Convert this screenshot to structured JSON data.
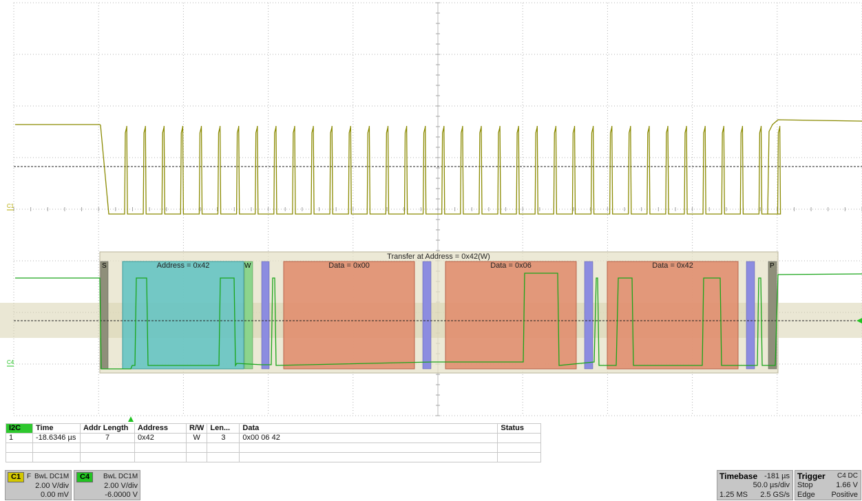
{
  "channels": {
    "c1_marker": "C1",
    "c4_marker": "C4"
  },
  "decode": {
    "transfer_label": "Transfer at Address = 0x42(W)",
    "start": "S",
    "address_label": "Address = 0x42",
    "rw": "W",
    "data_labels": [
      "Data = 0x00",
      "Data = 0x06",
      "Data = 0x42"
    ],
    "stop": "P"
  },
  "table": {
    "protocol": "I2C",
    "headers": [
      "Time",
      "Addr Length",
      "Address",
      "R/W",
      "Len...",
      "Data",
      "Status"
    ],
    "rows": [
      {
        "index": "1",
        "time": "-18.6346 µs",
        "addr_length": "7",
        "address": "0x42",
        "rw": "W",
        "len": "3",
        "data": "0x00 06 42",
        "status": ""
      }
    ]
  },
  "c1": {
    "label": "C1",
    "flag": "F",
    "coupling": "BwL DC1M",
    "vdiv": "2.00 V/div",
    "offset": "0.00 mV",
    "color": "#d4c800"
  },
  "c4": {
    "label": "C4",
    "coupling": "BwL DC1M",
    "vdiv": "2.00 V/div",
    "offset": "-6.0000 V",
    "color": "#22c322"
  },
  "timebase": {
    "title": "Timebase",
    "delay": "-181 µs",
    "tdiv": "50.0 µs/div",
    "samples": "1.25 MS",
    "rate": "2.5 GS/s"
  },
  "trigger": {
    "title": "Trigger",
    "source": "C4 DC",
    "mode": "Stop",
    "level": "1.66 V",
    "type": "Edge",
    "slope": "Positive"
  },
  "colors": {
    "c1_trace": "#8a8a00",
    "c4_trace": "#1aa51a",
    "address_box": "#5ec2c2",
    "data_box": "#e08a6a",
    "ack_box": "#8c8ce0",
    "start_stop": "#8f8f7a",
    "frame": "#e6e2c8"
  }
}
